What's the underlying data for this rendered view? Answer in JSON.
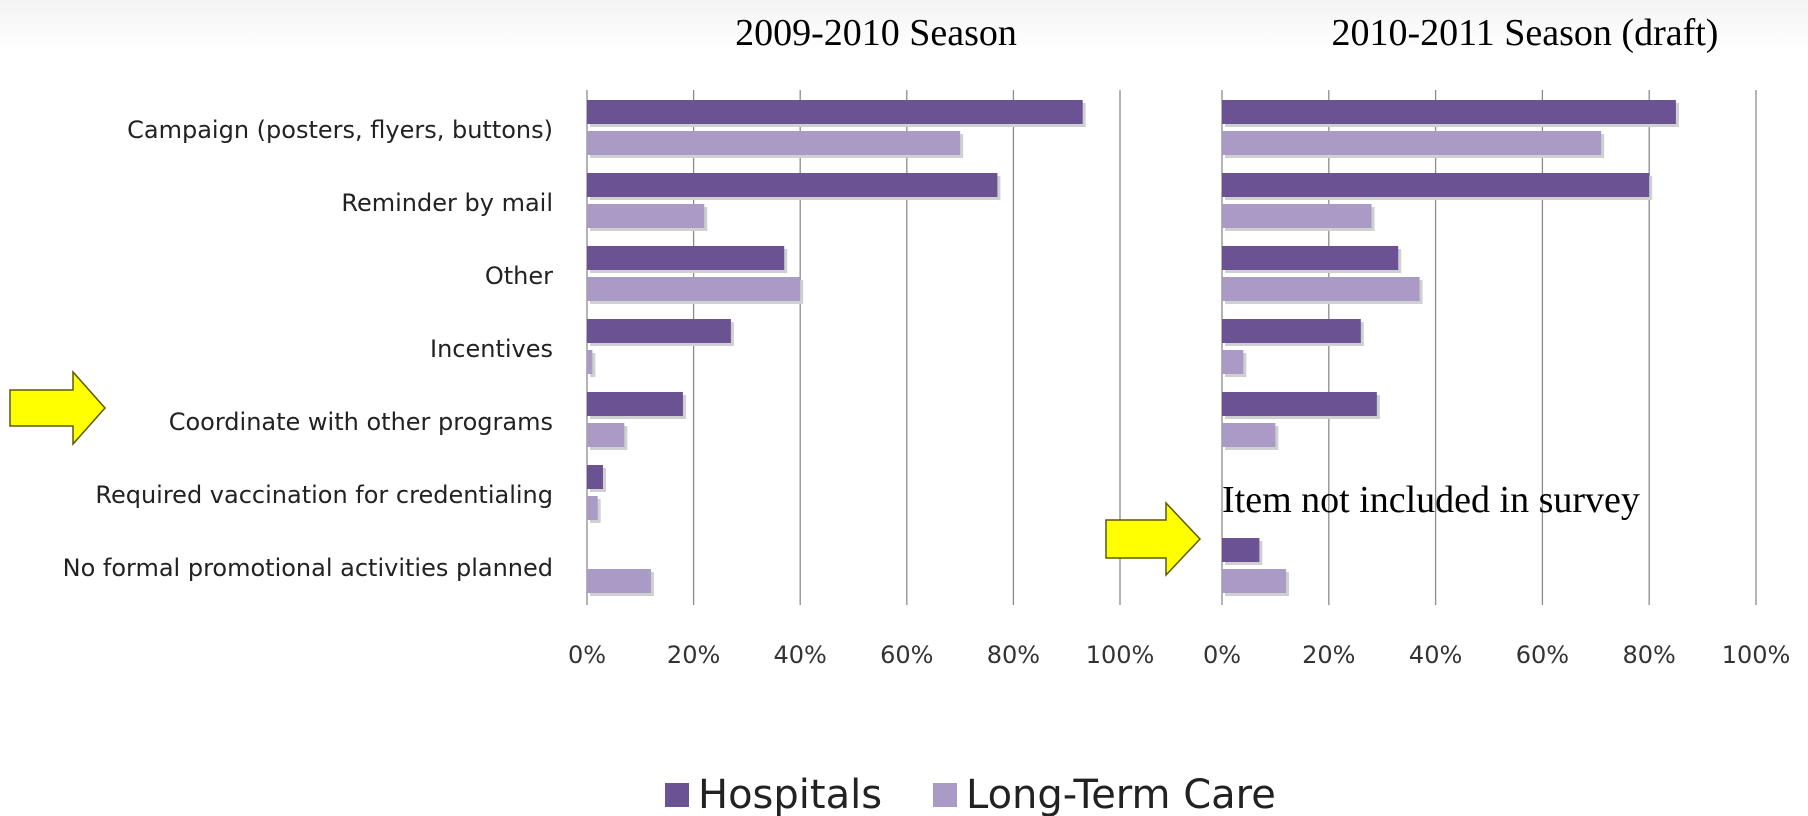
{
  "chart_data": [
    {
      "type": "bar",
      "orientation": "horizontal",
      "title": "2009-2010 Season",
      "categories": [
        "Campaign (posters, flyers, buttons)",
        "Reminder by mail",
        "Other",
        "Incentives",
        "Coordinate with other programs",
        "Required vaccination for credentialing",
        "No formal promotional activities planned"
      ],
      "series": [
        {
          "name": "Hospitals",
          "values": [
            93,
            77,
            37,
            27,
            18,
            3,
            0
          ]
        },
        {
          "name": "Long-Term Care",
          "values": [
            70,
            22,
            40,
            1,
            7,
            2,
            12
          ]
        }
      ],
      "xlim": [
        0,
        100
      ],
      "xticks": [
        "0%",
        "20%",
        "40%",
        "60%",
        "80%",
        "100%"
      ],
      "grid": "vertical"
    },
    {
      "type": "bar",
      "orientation": "horizontal",
      "title": "2010-2011 Season (draft)",
      "categories": [
        "Campaign (posters, flyers, buttons)",
        "Reminder by mail",
        "Other",
        "Incentives",
        "Coordinate with other programs",
        "Required vaccination for credentialing",
        "No formal promotional activities planned"
      ],
      "series": [
        {
          "name": "Hospitals",
          "values": [
            85,
            80,
            33,
            26,
            29,
            null,
            7
          ]
        },
        {
          "name": "Long-Term Care",
          "values": [
            71,
            28,
            37,
            4,
            10,
            null,
            12
          ]
        }
      ],
      "xlim": [
        0,
        100
      ],
      "xticks": [
        "0%",
        "20%",
        "40%",
        "60%",
        "80%",
        "100%"
      ],
      "grid": "vertical",
      "annotation": "Item not included in survey"
    }
  ],
  "legend": {
    "placement": "bottom-center",
    "items": [
      {
        "label": "Hospitals",
        "color": "#6b5393"
      },
      {
        "label": "Long-Term Care",
        "color": "#a99ac6"
      }
    ]
  },
  "highlight_arrows": {
    "color": "#ffff00",
    "stroke": "#5a5a00"
  }
}
